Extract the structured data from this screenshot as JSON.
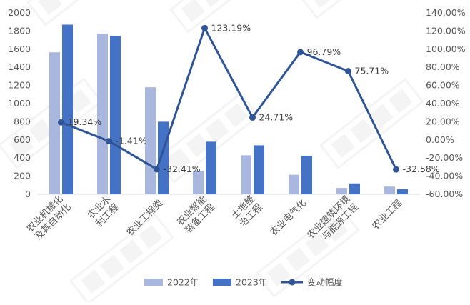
{
  "chart_data": {
    "type": "bar",
    "categories": [
      [
        "农业机械化",
        "及其自动化"
      ],
      [
        "农业水",
        "利工程"
      ],
      [
        "农业工程类"
      ],
      [
        "农业智能",
        "装备工程"
      ],
      [
        "土地整",
        "治工程"
      ],
      [
        "农业电气化"
      ],
      [
        "农业建筑环境",
        "与能源工程"
      ],
      [
        "农业工程"
      ]
    ],
    "series": [
      {
        "name": "2022年",
        "type": "bar",
        "axis": "left",
        "color": "#a9b6de",
        "values": [
          1565,
          1770,
          1180,
          260,
          430,
          215,
          70,
          85
        ]
      },
      {
        "name": "2023年",
        "type": "bar",
        "axis": "left",
        "color": "#4472c4",
        "values": [
          1870,
          1745,
          800,
          580,
          540,
          425,
          120,
          57
        ]
      },
      {
        "name": "变动幅度",
        "type": "line",
        "axis": "right",
        "color": "#2f5597",
        "values": [
          19.34,
          -1.41,
          -32.41,
          123.19,
          24.71,
          96.79,
          75.71,
          -32.58
        ],
        "labels": [
          "19.34%",
          "-1.41%",
          "-32.41%",
          "123.19%",
          "24.71%",
          "96.79%",
          "75.71%",
          "-32.58%"
        ]
      }
    ],
    "left_axis": {
      "min": 0,
      "max": 2000,
      "step": 200,
      "ticks": [
        "0",
        "200",
        "400",
        "600",
        "800",
        "1000",
        "1200",
        "1400",
        "1600",
        "1800",
        "2000"
      ]
    },
    "right_axis": {
      "min": -60,
      "max": 140,
      "step": 20,
      "ticks": [
        "-60.00%",
        "-40.00%",
        "-20.00%",
        "0.00%",
        "20.00%",
        "40.00%",
        "60.00%",
        "80.00%",
        "100.00%",
        "120.00%",
        "140.00%"
      ]
    },
    "legend_position": "bottom",
    "grid": false
  }
}
